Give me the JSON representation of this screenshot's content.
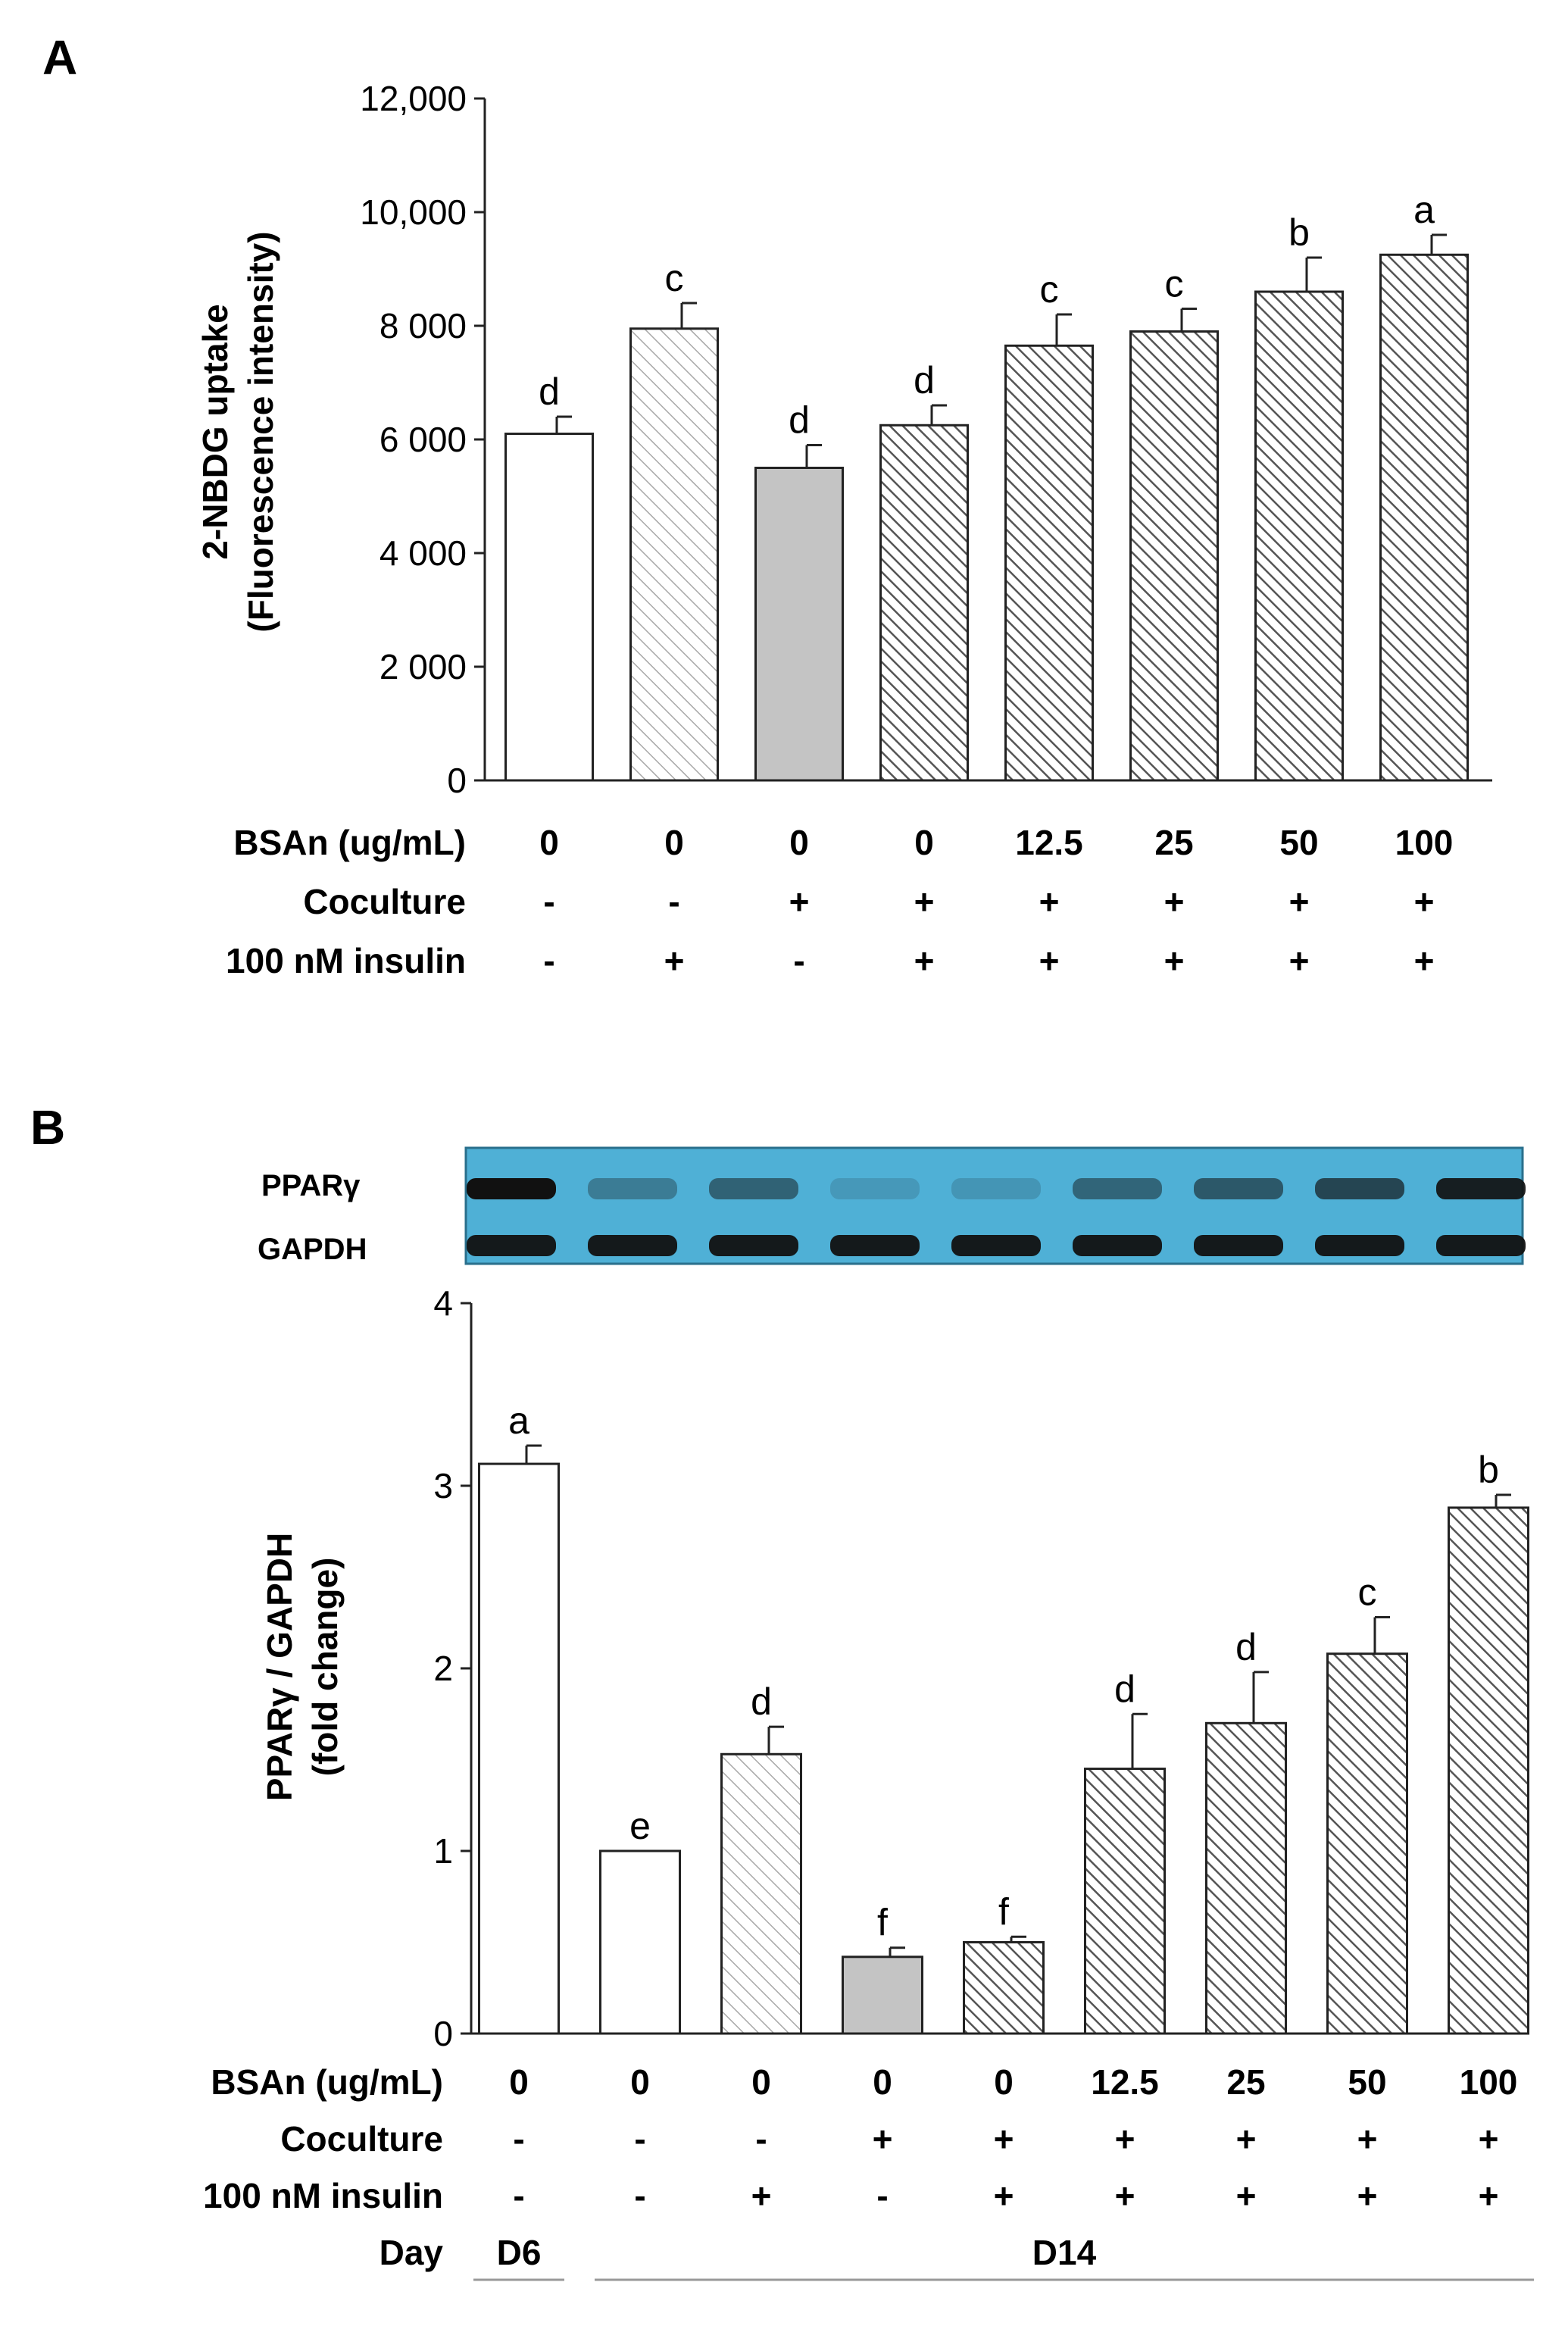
{
  "panels": [
    {
      "label": "A",
      "chart_data": {
        "type": "bar",
        "ylabel_line1": "2-NBDG uptake",
        "ylabel_line2": "(Fluorescence intensity)",
        "ylim": [
          0,
          12000
        ],
        "yticks": [
          {
            "value": 0,
            "label": "0"
          },
          {
            "value": 2000,
            "label": "2 000"
          },
          {
            "value": 4000,
            "label": "4 000"
          },
          {
            "value": 6000,
            "label": "6 000"
          },
          {
            "value": 8000,
            "label": "8 000"
          },
          {
            "value": 10000,
            "label": "10,000"
          },
          {
            "value": 12000,
            "label": "12,000"
          }
        ],
        "bars": [
          {
            "value": 6100,
            "error": 300,
            "sig": "d",
            "fill": "white"
          },
          {
            "value": 7950,
            "error": 450,
            "sig": "c",
            "fill": "light-hatch"
          },
          {
            "value": 5500,
            "error": 400,
            "sig": "d",
            "fill": "gray"
          },
          {
            "value": 6250,
            "error": 350,
            "sig": "d",
            "fill": "dark-hatch"
          },
          {
            "value": 7650,
            "error": 550,
            "sig": "c",
            "fill": "dark-hatch"
          },
          {
            "value": 7900,
            "error": 400,
            "sig": "c",
            "fill": "dark-hatch"
          },
          {
            "value": 8600,
            "error": 600,
            "sig": "b",
            "fill": "dark-hatch"
          },
          {
            "value": 9250,
            "error": 350,
            "sig": "a",
            "fill": "dark-hatch"
          }
        ],
        "conditions": [
          {
            "label": "BSAn (ug/mL)",
            "values": [
              "0",
              "0",
              "0",
              "0",
              "12.5",
              "25",
              "50",
              "100"
            ]
          },
          {
            "label": "Coculture",
            "values": [
              "-",
              "-",
              "+",
              "+",
              "+",
              "+",
              "+",
              "+"
            ]
          },
          {
            "label": "100 nM insulin",
            "values": [
              "-",
              "+",
              "-",
              "+",
              "+",
              "+",
              "+",
              "+"
            ]
          }
        ]
      }
    },
    {
      "label": "B",
      "blot": {
        "rows": [
          "PPARγ",
          "GAPDH"
        ],
        "color": "#4fb0d6"
      },
      "chart_data": {
        "type": "bar",
        "ylabel_line1": "PPARγ / GAPDH",
        "ylabel_line2": "(fold change)",
        "ylim": [
          0,
          4
        ],
        "yticks": [
          {
            "value": 0,
            "label": "0"
          },
          {
            "value": 1,
            "label": "1"
          },
          {
            "value": 2,
            "label": "2"
          },
          {
            "value": 3,
            "label": "3"
          },
          {
            "value": 4,
            "label": "4"
          }
        ],
        "bars": [
          {
            "value": 3.12,
            "error": 0.1,
            "sig": "a",
            "fill": "white"
          },
          {
            "value": 1.0,
            "error": 0.0,
            "sig": "e",
            "fill": "white"
          },
          {
            "value": 1.53,
            "error": 0.15,
            "sig": "d",
            "fill": "light-hatch"
          },
          {
            "value": 0.42,
            "error": 0.05,
            "sig": "f",
            "fill": "gray"
          },
          {
            "value": 0.5,
            "error": 0.03,
            "sig": "f",
            "fill": "dark-hatch"
          },
          {
            "value": 1.45,
            "error": 0.3,
            "sig": "d",
            "fill": "dark-hatch"
          },
          {
            "value": 1.7,
            "error": 0.28,
            "sig": "d",
            "fill": "dark-hatch"
          },
          {
            "value": 2.08,
            "error": 0.2,
            "sig": "c",
            "fill": "dark-hatch"
          },
          {
            "value": 2.88,
            "error": 0.07,
            "sig": "b",
            "fill": "dark-hatch"
          }
        ],
        "conditions": [
          {
            "label": "BSAn (ug/mL)",
            "values": [
              "0",
              "0",
              "0",
              "0",
              "0",
              "12.5",
              "25",
              "50",
              "100"
            ]
          },
          {
            "label": "Coculture",
            "values": [
              "-",
              "-",
              "-",
              "+",
              "+",
              "+",
              "+",
              "+",
              "+"
            ]
          },
          {
            "label": "100 nM insulin",
            "values": [
              "-",
              "-",
              "+",
              "-",
              "+",
              "+",
              "+",
              "+",
              "+"
            ]
          }
        ],
        "day_row": {
          "label": "Day",
          "groups": [
            {
              "text": "D6",
              "from": 0,
              "to": 0
            },
            {
              "text": "D14",
              "from": 1,
              "to": 8
            }
          ]
        }
      }
    }
  ]
}
